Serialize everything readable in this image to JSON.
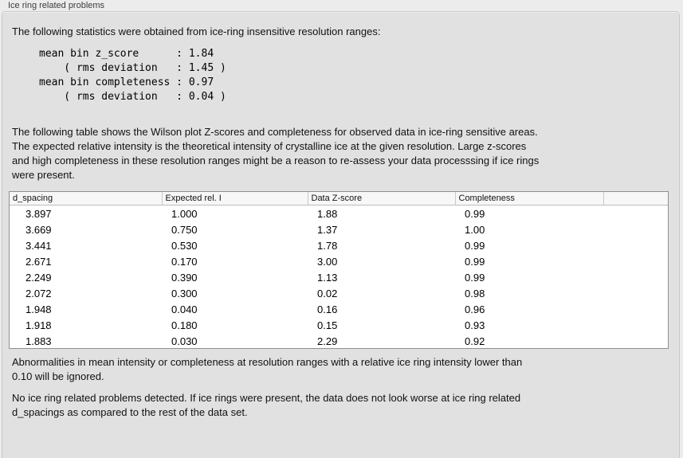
{
  "title": "Ice ring related problems",
  "colors": {
    "page_background": "#ececec",
    "groupbox_background": "#e1e1e1",
    "table_background": "#ffffff",
    "table_border": "#8f8f8f",
    "header_background": "#f7f7f7"
  },
  "intro": {
    "text": "The following statistics were obtained from ice-ring insensitive resolution ranges:"
  },
  "stats": {
    "lines": [
      "mean bin z_score      : 1.84",
      "    ( rms deviation   : 1.45 )",
      "mean bin completeness : 0.97",
      "    ( rms deviation   : 0.04 )"
    ]
  },
  "description": {
    "lines": [
      "The following table shows the Wilson plot Z-scores and completeness for observed data in ice-ring sensitive areas.",
      "The expected relative intensity is the theoretical intensity of crystalline ice at the given resolution. Large z-scores",
      "and high completeness in these resolution ranges might be a reason to re-assess your data processsing if ice rings",
      "were present."
    ]
  },
  "table": {
    "columns": [
      "d_spacing",
      "Expected rel. I",
      "Data Z-score",
      "Completeness",
      ""
    ],
    "rows": [
      [
        "3.897",
        "1.000",
        "1.88",
        "0.99",
        ""
      ],
      [
        "3.669",
        "0.750",
        "1.37",
        "1.00",
        ""
      ],
      [
        "3.441",
        "0.530",
        "1.78",
        "0.99",
        ""
      ],
      [
        "2.671",
        "0.170",
        "3.00",
        "0.99",
        ""
      ],
      [
        "2.249",
        "0.390",
        "1.13",
        "0.99",
        ""
      ],
      [
        "2.072",
        "0.300",
        "0.02",
        "0.98",
        ""
      ],
      [
        "1.948",
        "0.040",
        "0.16",
        "0.96",
        ""
      ],
      [
        "1.918",
        "0.180",
        "0.15",
        "0.93",
        ""
      ],
      [
        "1.883",
        "0.030",
        "2.29",
        "0.92",
        ""
      ]
    ]
  },
  "ignore_note": {
    "lines": [
      "Abnormalities in mean intensity or completeness at resolution ranges with a relative ice ring intensity lower than",
      "0.10 will be ignored."
    ]
  },
  "conclusion": {
    "lines": [
      "No ice ring related problems detected. If ice rings were present, the data does not look worse at ice ring related",
      "d_spacings as compared to the rest of the data set."
    ]
  }
}
